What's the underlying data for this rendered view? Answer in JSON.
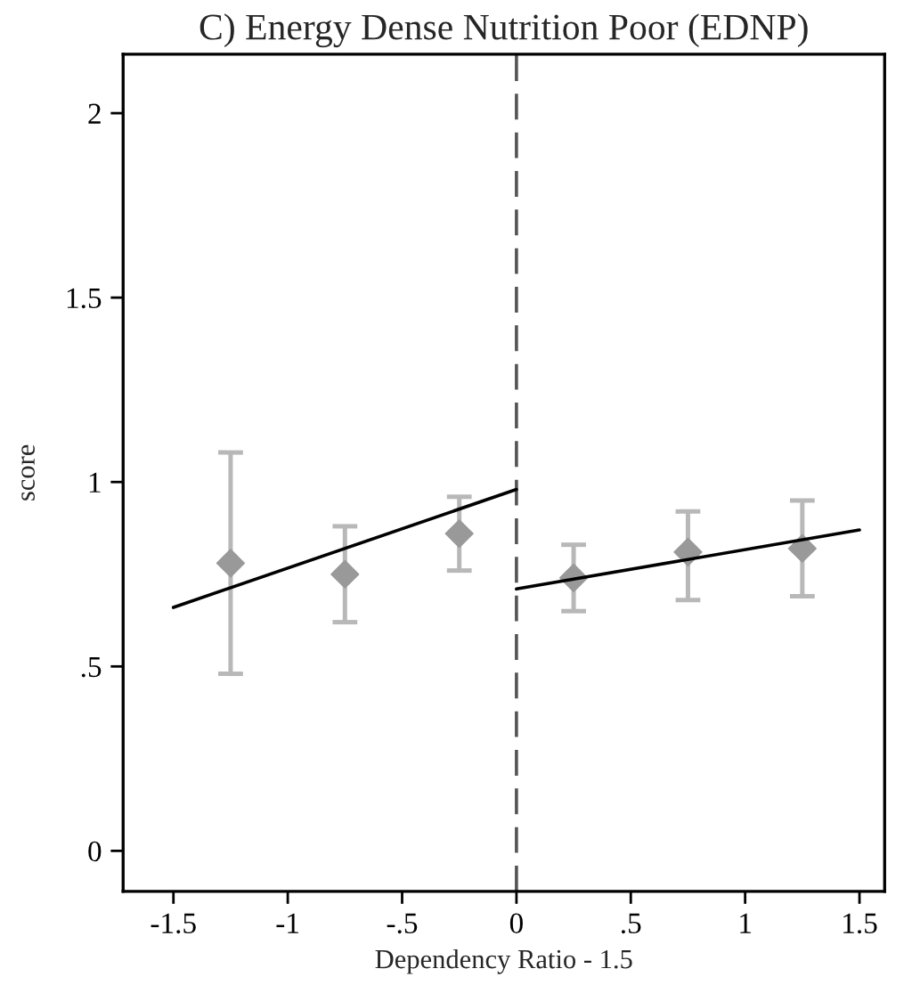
{
  "chart_data": {
    "type": "scatter",
    "title": "C) Energy Dense Nutrition Poor (EDNP)",
    "xlabel": "Dependency Ratio - 1.5",
    "ylabel": "score",
    "xlim": [
      -1.72,
      1.61
    ],
    "ylim": [
      -0.11,
      2.16
    ],
    "xticks": [
      -1.5,
      -1,
      {
        "value": -0.5,
        "label": "-.5"
      },
      0,
      {
        "value": 0.5,
        "label": ".5"
      },
      1,
      1.5
    ],
    "yticks": [
      0,
      {
        "value": 0.5,
        "label": ".5"
      },
      1,
      1.5,
      2
    ],
    "grid": false,
    "legend": false,
    "series": [
      {
        "marker": "diamond",
        "color": "#999999",
        "x": [
          -1.25,
          -0.75,
          -0.25,
          0.25,
          0.75,
          1.25
        ],
        "values": [
          0.78,
          0.75,
          0.86,
          0.74,
          0.81,
          0.82
        ],
        "errors": [
          [
            0.48,
            1.08
          ],
          [
            0.62,
            0.88
          ],
          [
            0.76,
            0.96
          ],
          [
            0.65,
            0.83
          ],
          [
            0.68,
            0.92
          ],
          [
            0.69,
            0.95
          ]
        ]
      },
      {
        "type": "line",
        "color": "#000000",
        "x": [
          -1.5,
          0
        ],
        "values": [
          0.66,
          0.98
        ],
        "line_style": "solid"
      },
      {
        "type": "line",
        "color": "#000000",
        "x": [
          0,
          1.5
        ],
        "values": [
          0.71,
          0.87
        ],
        "line_style": "solid"
      }
    ],
    "ref_lines": [
      {
        "axis": "x",
        "value": 0,
        "color": "#555555",
        "line_style": "dashed"
      }
    ]
  }
}
